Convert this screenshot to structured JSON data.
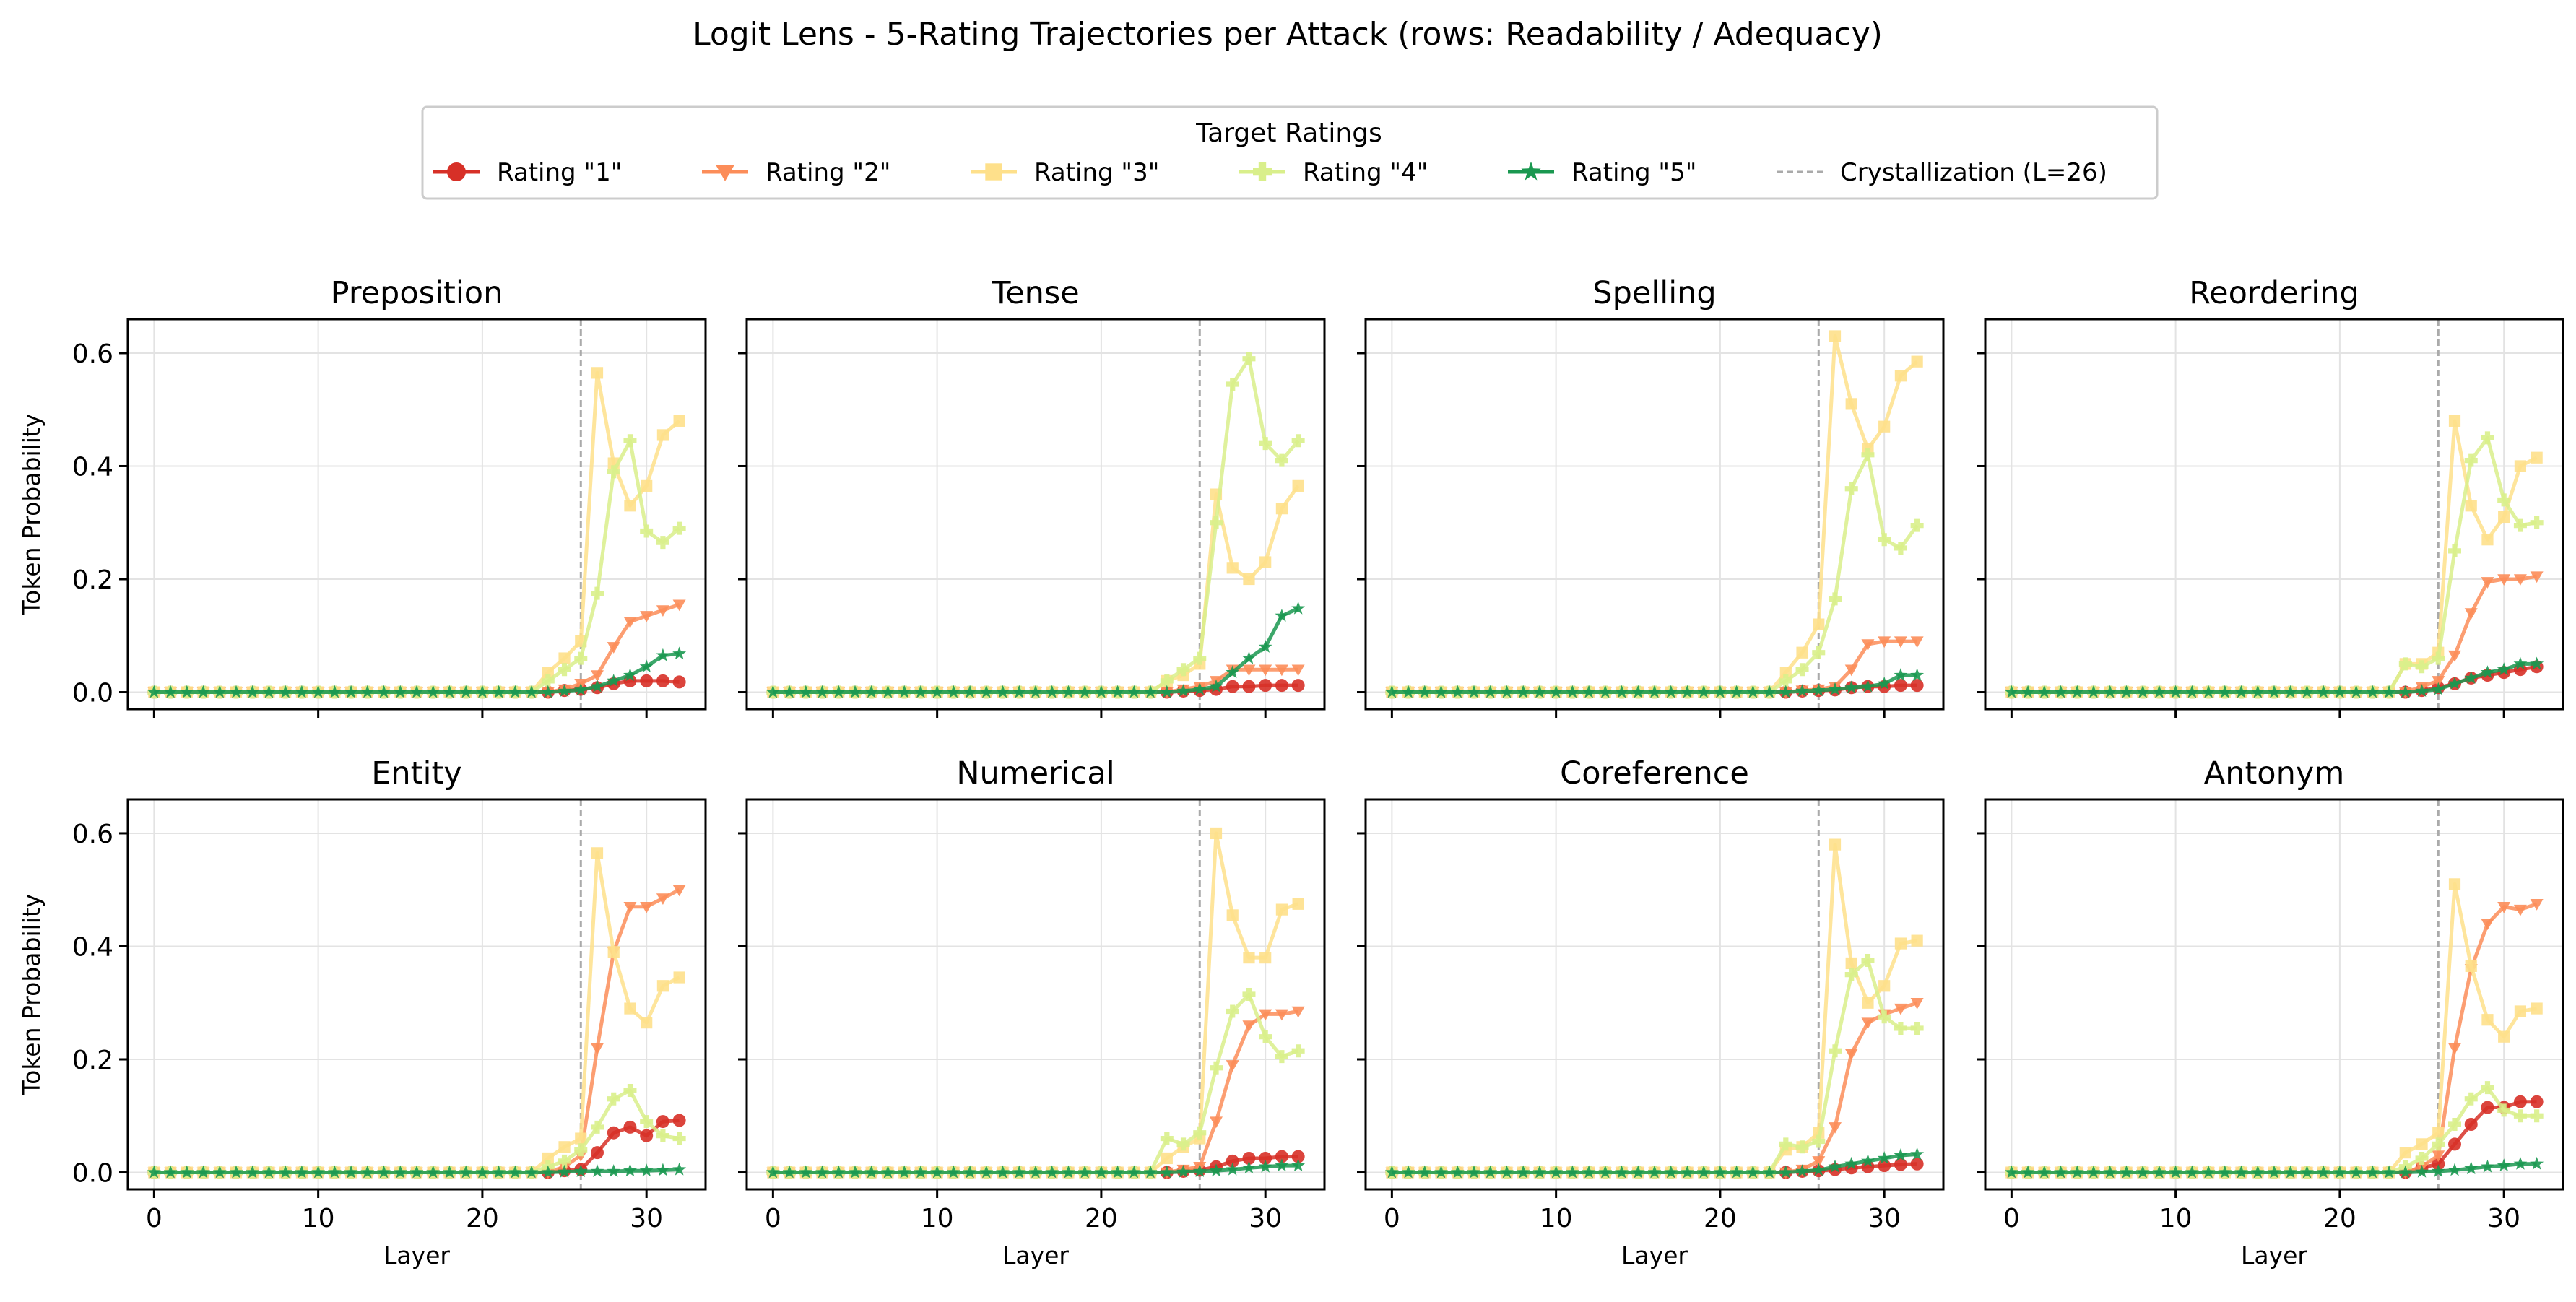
{
  "title": "Logit Lens - 5-Rating Trajectories per Attack (rows: Readability / Adequacy)",
  "legend": {
    "title": "Target Ratings",
    "entries": [
      {
        "label": "Rating \"1\"",
        "color": "#d73027",
        "marker": "circle"
      },
      {
        "label": "Rating \"2\"",
        "color": "#fc8d59",
        "marker": "triangle-down"
      },
      {
        "label": "Rating \"3\"",
        "color": "#fee08b",
        "marker": "square"
      },
      {
        "label": "Rating \"4\"",
        "color": "#d9ef8b",
        "marker": "plus-filled"
      },
      {
        "label": "Rating \"5\"",
        "color": "#1a9850",
        "marker": "star"
      },
      {
        "label": "Crystallization (L=26)",
        "color": "#aaaaaa",
        "marker": "dashed-line"
      }
    ]
  },
  "axes": {
    "xlabel": "Layer",
    "ylabel": "Token Probability",
    "xticks": [
      0,
      10,
      20,
      30
    ],
    "yticks": [
      0.0,
      0.2,
      0.4,
      0.6
    ],
    "xtick_labels": [
      "0",
      "10",
      "20",
      "30"
    ],
    "ytick_labels": [
      "0.0",
      "0.2",
      "0.4",
      "0.6"
    ]
  },
  "chart_data": {
    "type": "line",
    "x_range": [
      0,
      32
    ],
    "xlim": [
      -1.6,
      33.6
    ],
    "ylim": [
      -0.03,
      0.66
    ],
    "grid": true,
    "legend_placement": "top-center",
    "vline_x": 26,
    "panels": [
      {
        "title": "Preposition",
        "series": [
          {
            "name": "Rating \"1\"",
            "tail": [
              0.003,
              0.005,
              0.008,
              0.015,
              0.02,
              0.02,
              0.02,
              0.018
            ]
          },
          {
            "name": "Rating \"2\"",
            "tail": [
              0.005,
              0.015,
              0.03,
              0.08,
              0.125,
              0.135,
              0.145,
              0.155
            ]
          },
          {
            "name": "Rating \"3\"",
            "tail": [
              0.035,
              0.06,
              0.09,
              0.565,
              0.405,
              0.33,
              0.365,
              0.455,
              0.48
            ]
          },
          {
            "name": "Rating \"4\"",
            "tail": [
              0.02,
              0.04,
              0.06,
              0.175,
              0.39,
              0.445,
              0.285,
              0.265,
              0.29
            ]
          },
          {
            "name": "Rating \"5\"",
            "tail": [
              0.002,
              0.004,
              0.01,
              0.02,
              0.03,
              0.045,
              0.065,
              0.068
            ]
          }
        ]
      },
      {
        "title": "Tense",
        "series": [
          {
            "name": "Rating \"1\"",
            "tail": [
              0.002,
              0.003,
              0.005,
              0.01,
              0.01,
              0.012,
              0.012,
              0.012
            ]
          },
          {
            "name": "Rating \"2\"",
            "tail": [
              0.005,
              0.01,
              0.02,
              0.04,
              0.04,
              0.04,
              0.04,
              0.04
            ]
          },
          {
            "name": "Rating \"3\"",
            "tail": [
              0.02,
              0.03,
              0.05,
              0.35,
              0.22,
              0.2,
              0.23,
              0.325,
              0.365
            ]
          },
          {
            "name": "Rating \"4\"",
            "tail": [
              0.02,
              0.04,
              0.06,
              0.3,
              0.545,
              0.59,
              0.44,
              0.41,
              0.445
            ]
          },
          {
            "name": "Rating \"5\"",
            "tail": [
              0.002,
              0.005,
              0.01,
              0.035,
              0.06,
              0.08,
              0.135,
              0.148
            ]
          }
        ]
      },
      {
        "title": "Spelling",
        "series": [
          {
            "name": "Rating \"1\"",
            "tail": [
              0.002,
              0.003,
              0.004,
              0.008,
              0.01,
              0.01,
              0.012,
              0.012
            ]
          },
          {
            "name": "Rating \"2\"",
            "tail": [
              0.003,
              0.005,
              0.01,
              0.04,
              0.085,
              0.09,
              0.09,
              0.09
            ]
          },
          {
            "name": "Rating \"3\"",
            "tail": [
              0.035,
              0.07,
              0.12,
              0.63,
              0.51,
              0.43,
              0.47,
              0.56,
              0.585
            ]
          },
          {
            "name": "Rating \"4\"",
            "tail": [
              0.02,
              0.04,
              0.07,
              0.165,
              0.36,
              0.42,
              0.27,
              0.255,
              0.295
            ]
          },
          {
            "name": "Rating \"5\"",
            "tail": [
              0.002,
              0.003,
              0.005,
              0.008,
              0.01,
              0.015,
              0.03,
              0.03
            ]
          }
        ]
      },
      {
        "title": "Reordering",
        "series": [
          {
            "name": "Rating \"1\"",
            "tail": [
              0.003,
              0.008,
              0.015,
              0.025,
              0.03,
              0.035,
              0.04,
              0.045
            ]
          },
          {
            "name": "Rating \"2\"",
            "tail": [
              0.01,
              0.02,
              0.065,
              0.14,
              0.195,
              0.2,
              0.2,
              0.205
            ]
          },
          {
            "name": "Rating \"3\"",
            "tail": [
              0.05,
              0.05,
              0.07,
              0.48,
              0.33,
              0.27,
              0.31,
              0.4,
              0.415
            ]
          },
          {
            "name": "Rating \"4\"",
            "tail": [
              0.05,
              0.045,
              0.06,
              0.25,
              0.41,
              0.45,
              0.34,
              0.295,
              0.3
            ]
          },
          {
            "name": "Rating \"5\"",
            "tail": [
              0.002,
              0.005,
              0.015,
              0.025,
              0.035,
              0.04,
              0.05,
              0.05
            ]
          }
        ]
      },
      {
        "title": "Entity",
        "series": [
          {
            "name": "Rating \"1\"",
            "tail": [
              0.003,
              0.005,
              0.035,
              0.07,
              0.08,
              0.065,
              0.09,
              0.092
            ]
          },
          {
            "name": "Rating \"2\"",
            "tail": [
              0.01,
              0.03,
              0.22,
              0.39,
              0.47,
              0.47,
              0.485,
              0.5
            ]
          },
          {
            "name": "Rating \"3\"",
            "tail": [
              0.025,
              0.045,
              0.06,
              0.565,
              0.39,
              0.29,
              0.265,
              0.33,
              0.345
            ]
          },
          {
            "name": "Rating \"4\"",
            "tail": [
              0.01,
              0.02,
              0.04,
              0.08,
              0.13,
              0.145,
              0.09,
              0.065,
              0.06
            ]
          },
          {
            "name": "Rating \"5\"",
            "tail": [
              0.001,
              0.002,
              0.002,
              0.002,
              0.003,
              0.003,
              0.004,
              0.005
            ]
          }
        ]
      },
      {
        "title": "Numerical",
        "series": [
          {
            "name": "Rating \"1\"",
            "tail": [
              0.002,
              0.004,
              0.01,
              0.02,
              0.025,
              0.025,
              0.028,
              0.028
            ]
          },
          {
            "name": "Rating \"2\"",
            "tail": [
              0.005,
              0.01,
              0.09,
              0.19,
              0.26,
              0.28,
              0.28,
              0.285
            ]
          },
          {
            "name": "Rating \"3\"",
            "tail": [
              0.025,
              0.045,
              0.06,
              0.6,
              0.455,
              0.38,
              0.38,
              0.465,
              0.475
            ]
          },
          {
            "name": "Rating \"4\"",
            "tail": [
              0.06,
              0.05,
              0.07,
              0.185,
              0.285,
              0.315,
              0.24,
              0.205,
              0.215
            ]
          },
          {
            "name": "Rating \"5\"",
            "tail": [
              0.001,
              0.002,
              0.003,
              0.005,
              0.008,
              0.01,
              0.012,
              0.012
            ]
          }
        ]
      },
      {
        "title": "Coreference",
        "series": [
          {
            "name": "Rating \"1\"",
            "tail": [
              0.002,
              0.003,
              0.005,
              0.008,
              0.01,
              0.012,
              0.014,
              0.015
            ]
          },
          {
            "name": "Rating \"2\"",
            "tail": [
              0.005,
              0.02,
              0.08,
              0.21,
              0.265,
              0.28,
              0.29,
              0.3
            ]
          },
          {
            "name": "Rating \"3\"",
            "tail": [
              0.04,
              0.045,
              0.07,
              0.58,
              0.37,
              0.3,
              0.33,
              0.405,
              0.41
            ]
          },
          {
            "name": "Rating \"4\"",
            "tail": [
              0.05,
              0.045,
              0.055,
              0.215,
              0.35,
              0.375,
              0.275,
              0.255,
              0.255
            ]
          },
          {
            "name": "Rating \"5\"",
            "tail": [
              0.002,
              0.004,
              0.01,
              0.015,
              0.02,
              0.025,
              0.03,
              0.032
            ]
          }
        ]
      },
      {
        "title": "Antonym",
        "series": [
          {
            "name": "Rating \"1\"",
            "tail": [
              0.008,
              0.015,
              0.05,
              0.085,
              0.115,
              0.115,
              0.125,
              0.125
            ]
          },
          {
            "name": "Rating \"2\"",
            "tail": [
              0.01,
              0.03,
              0.22,
              0.36,
              0.44,
              0.47,
              0.465,
              0.475
            ]
          },
          {
            "name": "Rating \"3\"",
            "tail": [
              0.035,
              0.05,
              0.07,
              0.51,
              0.365,
              0.27,
              0.24,
              0.285,
              0.29
            ]
          },
          {
            "name": "Rating \"4\"",
            "tail": [
              0.01,
              0.025,
              0.05,
              0.085,
              0.13,
              0.15,
              0.11,
              0.1,
              0.1
            ]
          },
          {
            "name": "Rating \"5\"",
            "tail": [
              0.001,
              0.002,
              0.004,
              0.007,
              0.01,
              0.012,
              0.015,
              0.015
            ]
          }
        ]
      }
    ]
  }
}
